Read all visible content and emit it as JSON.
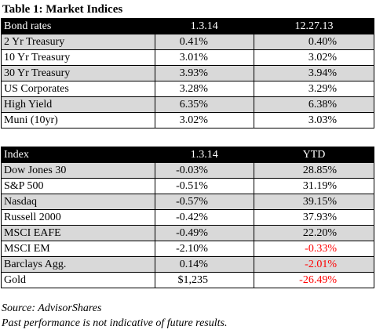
{
  "title": "Table 1: Market Indices",
  "bond_table": {
    "headers": [
      "Bond rates",
      "1.3.14",
      "12.27.13"
    ],
    "rows": [
      {
        "name": "2 Yr Treasury",
        "v1": "0.41%",
        "v2": "0.40%",
        "v2_negative": false
      },
      {
        "name": "10 Yr Treasury",
        "v1": "3.01%",
        "v2": "3.02%",
        "v2_negative": false
      },
      {
        "name": "30 Yr Treasury",
        "v1": "3.93%",
        "v2": "3.94%",
        "v2_negative": false
      },
      {
        "name": "US Corporates",
        "v1": "3.28%",
        "v2": "3.29%",
        "v2_negative": false
      },
      {
        "name": "High Yield",
        "v1": "6.35%",
        "v2": "6.38%",
        "v2_negative": false
      },
      {
        "name": "Muni (10yr)",
        "v1": "3.02%",
        "v2": "3.03%",
        "v2_negative": false
      }
    ]
  },
  "index_table": {
    "headers": [
      "Index",
      "1.3.14",
      "YTD"
    ],
    "rows": [
      {
        "name": "Dow Jones 30",
        "v1": "-0.03%",
        "v2": "28.85%",
        "v2_negative": false
      },
      {
        "name": "S&P 500",
        "v1": "-0.51%",
        "v2": "31.19%",
        "v2_negative": false
      },
      {
        "name": "Nasdaq",
        "v1": "-0.57%",
        "v2": "39.15%",
        "v2_negative": false
      },
      {
        "name": "Russell 2000",
        "v1": "-0.42%",
        "v2": "37.93%",
        "v2_negative": false
      },
      {
        "name": "MSCI EAFE",
        "v1": "-0.49%",
        "v2": "22.20%",
        "v2_negative": false
      },
      {
        "name": "MSCI EM",
        "v1": "-2.10%",
        "v2": "-0.33%",
        "v2_negative": true
      },
      {
        "name": "Barclays Agg.",
        "v1": "0.14%",
        "v2": "-2.01%",
        "v2_negative": true
      },
      {
        "name": "Gold",
        "v1": "$1,235",
        "v2": "-26.49%",
        "v2_negative": true
      }
    ]
  },
  "source": "Source: AdvisorShares",
  "disclaimer": "Past performance is not indicative of future results.",
  "colors": {
    "header_bg": "#000000",
    "shade_bg": "#d9d9d9",
    "negative": "#ff0000"
  }
}
